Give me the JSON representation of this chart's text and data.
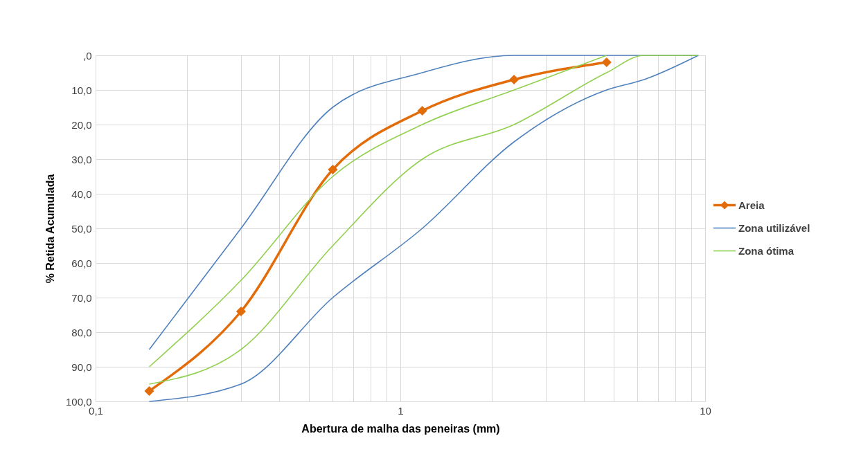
{
  "chart_data": {
    "type": "line",
    "xlabel": "Abertura de malha das peneiras (mm)",
    "ylabel": "% Retida Acumulada",
    "log": "x",
    "grid": true,
    "legend": "right",
    "xlim": [
      0.1,
      10
    ],
    "xticks": [
      {
        "value": 0.1,
        "label": "0,1"
      },
      {
        "value": 0.2,
        "label": null
      },
      {
        "value": 0.3,
        "label": null
      },
      {
        "value": 0.4,
        "label": null
      },
      {
        "value": 0.5,
        "label": null
      },
      {
        "value": 0.6,
        "label": null
      },
      {
        "value": 0.7,
        "label": null
      },
      {
        "value": 0.8,
        "label": null
      },
      {
        "value": 0.9,
        "label": null
      },
      1,
      {
        "value": 2,
        "label": null
      },
      {
        "value": 3,
        "label": null
      },
      {
        "value": 4,
        "label": null
      },
      {
        "value": 5,
        "label": null
      },
      {
        "value": 6,
        "label": null
      },
      {
        "value": 7,
        "label": null
      },
      {
        "value": 8,
        "label": null
      },
      {
        "value": 9,
        "label": null
      },
      10
    ],
    "ylim": [
      100,
      0
    ],
    "yticks": [
      {
        "value": 0,
        "label": ",0"
      },
      {
        "value": 10,
        "label": "10,0"
      },
      {
        "value": 20,
        "label": "20,0"
      },
      {
        "value": 30,
        "label": "30,0"
      },
      {
        "value": 40,
        "label": "40,0"
      },
      {
        "value": 50,
        "label": "50,0"
      },
      {
        "value": 60,
        "label": "60,0"
      },
      {
        "value": 70,
        "label": "70,0"
      },
      {
        "value": 80,
        "label": "80,0"
      },
      {
        "value": 90,
        "label": "90,0"
      },
      {
        "value": 100,
        "label": "100,0"
      }
    ],
    "series": [
      {
        "name": "Areia",
        "color": "#e36c0a",
        "marker": "diamond",
        "x": [
          0.15,
          0.3,
          0.6,
          1.18,
          2.36,
          4.75
        ],
        "values": [
          97,
          74,
          33,
          16,
          7,
          2
        ]
      },
      {
        "name": "Zona utilizável",
        "color": "#4f81bd",
        "x": [
          0.15,
          0.3,
          0.6,
          1.18,
          2.36,
          4.75,
          6.3,
          9.5
        ],
        "values": [
          85,
          50,
          15,
          5,
          0,
          0,
          0,
          0
        ]
      },
      {
        "color": "#4f81bd",
        "x": [
          0.15,
          0.3,
          0.6,
          1.18,
          2.36,
          4.75,
          6.3,
          9.5
        ],
        "values": [
          100,
          95,
          70,
          50,
          25,
          10,
          7,
          0
        ]
      },
      {
        "name": "Zona ótima",
        "color": "#92d050",
        "x": [
          0.15,
          0.3,
          0.6,
          1.18,
          2.36,
          4.75
        ],
        "values": [
          90,
          65,
          35,
          20,
          10,
          0
        ]
      },
      {
        "color": "#92d050",
        "x": [
          0.15,
          0.3,
          0.6,
          1.18,
          2.36,
          4.75,
          6.3,
          9.5
        ],
        "values": [
          95,
          85,
          55,
          30,
          20,
          5,
          0,
          0
        ]
      }
    ]
  }
}
